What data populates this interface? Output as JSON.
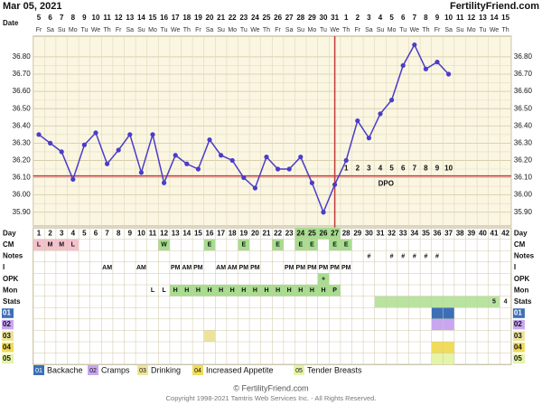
{
  "header": {
    "date": "Mar 05, 2021",
    "site": "FertilityFriend.com"
  },
  "chart_data": {
    "type": "line",
    "date_label": "Date",
    "dates": [
      5,
      6,
      7,
      8,
      9,
      10,
      11,
      12,
      13,
      14,
      15,
      16,
      17,
      18,
      19,
      20,
      21,
      22,
      23,
      24,
      25,
      26,
      27,
      28,
      29,
      30,
      31,
      1,
      2,
      3,
      4,
      5,
      6,
      7,
      8,
      9,
      10,
      11,
      12,
      13,
      14,
      15
    ],
    "weekdays": [
      "Fr",
      "Sa",
      "Su",
      "Mo",
      "Tu",
      "We",
      "Th",
      "Fr",
      "Sa",
      "Su",
      "Mo",
      "Tu",
      "We",
      "Th",
      "Fr",
      "Sa",
      "Su",
      "Mo",
      "Tu",
      "We",
      "Th",
      "Fr",
      "Sa",
      "Su",
      "Mo",
      "Tu",
      "We",
      "Th",
      "Fr",
      "Sa",
      "Su",
      "Mo",
      "Tu",
      "We",
      "Th",
      "Fr",
      "Sa",
      "Su",
      "Mo",
      "Tu",
      "We",
      "Th"
    ],
    "day_label": "Day",
    "categories": [
      1,
      2,
      3,
      4,
      5,
      6,
      7,
      8,
      9,
      10,
      11,
      12,
      13,
      14,
      15,
      16,
      17,
      18,
      19,
      20,
      21,
      22,
      23,
      24,
      25,
      26,
      27,
      28,
      29,
      30,
      31,
      32,
      33,
      34,
      35,
      36,
      37,
      38,
      39,
      40,
      41,
      42
    ],
    "fertile_days": [
      24,
      25,
      26,
      27
    ],
    "fertile_color": "#a8dc90",
    "series": [
      {
        "color": "#4b3cc8",
        "values": [
          36.35,
          36.3,
          36.25,
          36.09,
          36.29,
          36.36,
          36.18,
          36.26,
          36.35,
          36.13,
          36.35,
          36.07,
          36.23,
          36.18,
          36.15,
          36.32,
          36.23,
          36.2,
          36.1,
          36.04,
          36.22,
          36.15,
          36.15,
          36.22,
          36.07,
          35.9,
          36.06,
          36.2,
          36.43,
          36.33,
          36.47,
          36.55,
          36.75,
          36.87,
          36.73,
          36.77,
          36.7,
          null,
          null,
          null,
          null,
          null
        ]
      }
    ],
    "ylim": [
      35.82,
      36.92
    ],
    "yticks": [
      {
        "value": 35.9,
        "label": "35.90"
      },
      {
        "value": 36.0,
        "label": "36.00"
      },
      {
        "value": 36.1,
        "label": "36.10"
      },
      {
        "value": 36.2,
        "label": "36.20"
      },
      {
        "value": 36.3,
        "label": "36.30"
      },
      {
        "value": 36.4,
        "label": "36.40"
      },
      {
        "value": 36.5,
        "label": "36.50"
      },
      {
        "value": 36.6,
        "label": "36.60"
      },
      {
        "value": 36.7,
        "label": "36.70"
      },
      {
        "value": 36.8,
        "label": "36.80"
      }
    ],
    "grid": true,
    "coverline": 36.11,
    "coverline_color": "#c23b3b",
    "ovulation_day": 27,
    "dpo_label": "DPO",
    "dpo": [
      null,
      null,
      null,
      null,
      null,
      null,
      null,
      null,
      null,
      null,
      null,
      null,
      null,
      null,
      null,
      null,
      null,
      null,
      null,
      null,
      null,
      null,
      null,
      null,
      null,
      null,
      null,
      1,
      2,
      3,
      4,
      5,
      6,
      7,
      8,
      9,
      10,
      null,
      null,
      null,
      null,
      null
    ]
  },
  "rows": [
    {
      "label": "CM",
      "cells": [
        {
          "text": "L",
          "color": "#f4c2cc"
        },
        {
          "text": "M",
          "color": "#f4c2cc"
        },
        {
          "text": "M",
          "color": "#f4c2cc"
        },
        {
          "text": "L",
          "color": "#f4c2cc"
        },
        null,
        null,
        null,
        null,
        null,
        null,
        null,
        {
          "text": "W",
          "color": "#a8dc90"
        },
        null,
        null,
        null,
        {
          "text": "E",
          "color": "#a8dc90"
        },
        null,
        null,
        {
          "text": "E",
          "color": "#a8dc90"
        },
        null,
        null,
        {
          "text": "E",
          "color": "#a8dc90"
        },
        null,
        {
          "text": "E",
          "color": "#a8dc90"
        },
        {
          "text": "E",
          "color": "#a8dc90"
        },
        null,
        {
          "text": "E",
          "color": "#a8dc90"
        },
        {
          "text": "E",
          "color": "#a8dc90"
        },
        null,
        null,
        null,
        null,
        null,
        null,
        null,
        null,
        null,
        null,
        null,
        null,
        null,
        null
      ]
    },
    {
      "label": "Notes",
      "cells": [
        null,
        null,
        null,
        null,
        null,
        null,
        null,
        null,
        null,
        null,
        null,
        null,
        null,
        null,
        null,
        null,
        null,
        null,
        null,
        null,
        null,
        null,
        null,
        null,
        null,
        null,
        null,
        null,
        null,
        {
          "text": "#"
        },
        null,
        {
          "text": "#"
        },
        {
          "text": "#"
        },
        {
          "text": "#"
        },
        {
          "text": "#"
        },
        {
          "text": "#"
        },
        null,
        null,
        null,
        null,
        null,
        null
      ]
    },
    {
      "label": "I",
      "cells": [
        null,
        null,
        null,
        null,
        null,
        null,
        {
          "text": "AM"
        },
        null,
        null,
        {
          "text": "AM"
        },
        null,
        null,
        {
          "text": "PM"
        },
        {
          "text": "AM"
        },
        {
          "text": "PM"
        },
        null,
        {
          "text": "AM"
        },
        {
          "text": "AM"
        },
        {
          "text": "PM"
        },
        {
          "text": "PM"
        },
        null,
        null,
        {
          "text": "PM"
        },
        {
          "text": "PM"
        },
        {
          "text": "PM"
        },
        {
          "text": "PM"
        },
        {
          "text": "PM"
        },
        {
          "text": "PM"
        },
        null,
        null,
        null,
        null,
        null,
        null,
        null,
        null,
        null,
        null,
        null,
        null,
        null,
        null
      ]
    },
    {
      "label": "OPK",
      "cells": [
        null,
        null,
        null,
        null,
        null,
        null,
        null,
        null,
        null,
        null,
        null,
        null,
        null,
        null,
        null,
        null,
        null,
        null,
        null,
        null,
        null,
        null,
        null,
        null,
        null,
        {
          "text": "+",
          "color": "#a8dc90"
        },
        null,
        null,
        null,
        null,
        null,
        null,
        null,
        null,
        null,
        null,
        null,
        null,
        null,
        null,
        null,
        null
      ]
    },
    {
      "label": "Mon",
      "cells": [
        null,
        null,
        null,
        null,
        null,
        null,
        null,
        null,
        null,
        null,
        {
          "text": "L"
        },
        {
          "text": "L"
        },
        {
          "text": "H",
          "color": "#a8dc90"
        },
        {
          "text": "H",
          "color": "#a8dc90"
        },
        {
          "text": "H",
          "color": "#a8dc90"
        },
        {
          "text": "H",
          "color": "#a8dc90"
        },
        {
          "text": "H",
          "color": "#a8dc90"
        },
        {
          "text": "H",
          "color": "#a8dc90"
        },
        {
          "text": "H",
          "color": "#a8dc90"
        },
        {
          "text": "H",
          "color": "#a8dc90"
        },
        {
          "text": "H",
          "color": "#a8dc90"
        },
        {
          "text": "H",
          "color": "#a8dc90"
        },
        {
          "text": "H",
          "color": "#a8dc90"
        },
        {
          "text": "H",
          "color": "#a8dc90"
        },
        {
          "text": "H",
          "color": "#a8dc90"
        },
        {
          "text": "H",
          "color": "#a8dc90"
        },
        {
          "text": "P",
          "color": "#a8dc90"
        },
        null,
        null,
        null,
        null,
        null,
        null,
        null,
        null,
        null,
        null,
        null,
        null,
        null,
        null,
        null
      ]
    },
    {
      "label": "Stats",
      "cells": [
        null,
        null,
        null,
        null,
        null,
        null,
        null,
        null,
        null,
        null,
        null,
        null,
        null,
        null,
        null,
        null,
        null,
        null,
        null,
        null,
        null,
        null,
        null,
        null,
        null,
        null,
        null,
        null,
        null,
        null,
        {
          "color": "#b8e4a0"
        },
        {
          "color": "#b8e4a0"
        },
        {
          "color": "#b8e4a0"
        },
        {
          "color": "#b8e4a0"
        },
        {
          "color": "#b8e4a0"
        },
        {
          "color": "#b8e4a0"
        },
        {
          "color": "#b8e4a0"
        },
        {
          "color": "#b8e4a0"
        },
        {
          "color": "#b8e4a0"
        },
        {
          "color": "#b8e4a0"
        },
        {
          "text": 5,
          "color": "#b8e4a0"
        },
        {
          "text": 4
        }
      ]
    },
    {
      "label": "01",
      "label_color": "#3d6fb6",
      "cells": [
        null,
        null,
        null,
        null,
        null,
        null,
        null,
        null,
        null,
        null,
        null,
        null,
        null,
        null,
        null,
        null,
        null,
        null,
        null,
        null,
        null,
        null,
        null,
        null,
        null,
        null,
        null,
        null,
        null,
        null,
        null,
        null,
        null,
        null,
        null,
        {
          "color": "#3d6fb6"
        },
        {
          "color": "#3d6fb6"
        },
        null,
        null,
        null,
        null,
        null
      ]
    },
    {
      "label": "02",
      "label_color": "#c9a6f0",
      "cells": [
        null,
        null,
        null,
        null,
        null,
        null,
        null,
        null,
        null,
        null,
        null,
        null,
        null,
        null,
        null,
        null,
        null,
        null,
        null,
        null,
        null,
        null,
        null,
        null,
        null,
        null,
        null,
        null,
        null,
        null,
        null,
        null,
        null,
        null,
        null,
        {
          "color": "#c9a6f0"
        },
        {
          "color": "#c9a6f0"
        },
        null,
        null,
        null,
        null,
        null
      ]
    },
    {
      "label": "03",
      "label_color": "#ece49a",
      "cells": [
        null,
        null,
        null,
        null,
        null,
        null,
        null,
        null,
        null,
        null,
        null,
        null,
        null,
        null,
        null,
        {
          "color": "#ece49a"
        },
        null,
        null,
        null,
        null,
        null,
        null,
        null,
        null,
        null,
        null,
        null,
        null,
        null,
        null,
        null,
        null,
        null,
        null,
        null,
        null,
        null,
        null,
        null,
        null,
        null,
        null
      ]
    },
    {
      "label": "04",
      "label_color": "#f0dc5a",
      "cells": [
        null,
        null,
        null,
        null,
        null,
        null,
        null,
        null,
        null,
        null,
        null,
        null,
        null,
        null,
        null,
        null,
        null,
        null,
        null,
        null,
        null,
        null,
        null,
        null,
        null,
        null,
        null,
        null,
        null,
        null,
        null,
        null,
        null,
        null,
        null,
        {
          "color": "#f0dc5a"
        },
        {
          "color": "#f0dc5a"
        },
        null,
        null,
        null,
        null,
        null
      ]
    },
    {
      "label": "05",
      "label_color": "#e4f4a8",
      "cells": [
        null,
        null,
        null,
        null,
        null,
        null,
        null,
        null,
        null,
        null,
        null,
        null,
        null,
        null,
        null,
        null,
        null,
        null,
        null,
        null,
        null,
        null,
        null,
        null,
        null,
        null,
        null,
        null,
        null,
        null,
        null,
        null,
        null,
        null,
        null,
        {
          "color": "#e4f4a8"
        },
        {
          "color": "#e4f4a8"
        },
        null,
        null,
        null,
        null,
        null
      ]
    }
  ],
  "legend": [
    {
      "code": "01",
      "name": "Backache",
      "color": "#3d6fb6"
    },
    {
      "code": "02",
      "name": "Cramps",
      "color": "#c9a6f0"
    },
    {
      "code": "03",
      "name": "Drinking",
      "color": "#ece49a"
    },
    {
      "code": "04",
      "name": "Increased Appetite",
      "color": "#f0dc5a"
    },
    {
      "code": "05",
      "name": "Tender Breasts",
      "color": "#e4f4a8"
    }
  ],
  "footer": {
    "line1": "© FertilityFriend.com",
    "line2": "Copyright 1998-2021 Tamtris Web Services Inc. - All Rights Reserved."
  }
}
